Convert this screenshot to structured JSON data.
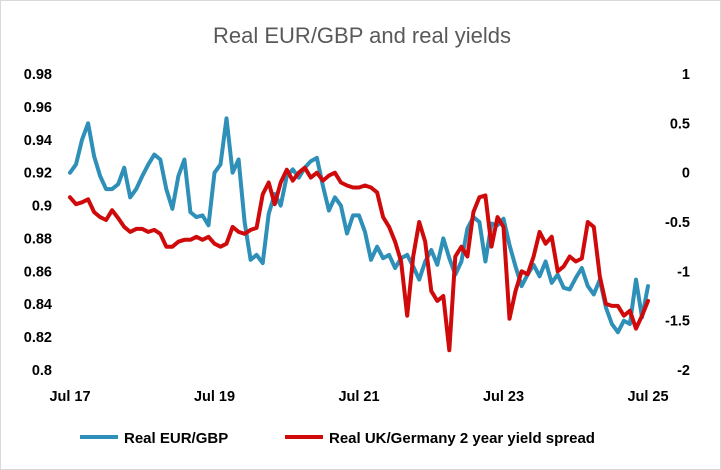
{
  "chart_data": {
    "type": "line",
    "title": "Real EUR/GBP and real yields",
    "xlabel": "",
    "ylabel": "",
    "x_ticks": [
      "Jul 17",
      "Jul 19",
      "Jul 21",
      "Jul 23",
      "Jul 25"
    ],
    "xlim": [
      "2017-07",
      "2025-07"
    ],
    "y_left": {
      "lim": [
        0.8,
        0.98
      ],
      "ticks": [
        "0.98",
        "0.96",
        "0.94",
        "0.92",
        "0.9",
        "0.88",
        "0.86",
        "0.84",
        "0.82",
        "0.8"
      ]
    },
    "y_right": {
      "lim": [
        -2,
        1
      ],
      "ticks": [
        "1",
        "0.5",
        "0",
        "-0.5",
        "-1",
        "-1.5",
        "-2"
      ]
    },
    "legend_position": "bottom",
    "series": [
      {
        "name": "Real EUR/GBP",
        "axis": "left",
        "color": "#2E8FB8",
        "points": [
          [
            "2017-07",
            0.92
          ],
          [
            "2017-08",
            0.925
          ],
          [
            "2017-09",
            0.94
          ],
          [
            "2017-10",
            0.95
          ],
          [
            "2017-11",
            0.93
          ],
          [
            "2017-12",
            0.918
          ],
          [
            "2018-01",
            0.91
          ],
          [
            "2018-02",
            0.91
          ],
          [
            "2018-03",
            0.913
          ],
          [
            "2018-04",
            0.923
          ],
          [
            "2018-05",
            0.905
          ],
          [
            "2018-06",
            0.91
          ],
          [
            "2018-07",
            0.918
          ],
          [
            "2018-08",
            0.925
          ],
          [
            "2018-09",
            0.931
          ],
          [
            "2018-10",
            0.928
          ],
          [
            "2018-11",
            0.91
          ],
          [
            "2018-12",
            0.898
          ],
          [
            "2019-01",
            0.918
          ],
          [
            "2019-02",
            0.928
          ],
          [
            "2019-03",
            0.896
          ],
          [
            "2019-04",
            0.893
          ],
          [
            "2019-05",
            0.894
          ],
          [
            "2019-06",
            0.888
          ],
          [
            "2019-07",
            0.92
          ],
          [
            "2019-08",
            0.925
          ],
          [
            "2019-09",
            0.953
          ],
          [
            "2019-10",
            0.92
          ],
          [
            "2019-11",
            0.928
          ],
          [
            "2019-12",
            0.89
          ],
          [
            "2020-01",
            0.867
          ],
          [
            "2020-02",
            0.87
          ],
          [
            "2020-03",
            0.865
          ],
          [
            "2020-04",
            0.895
          ],
          [
            "2020-05",
            0.907
          ],
          [
            "2020-06",
            0.9
          ],
          [
            "2020-07",
            0.918
          ],
          [
            "2020-08",
            0.922
          ],
          [
            "2020-09",
            0.917
          ],
          [
            "2020-10",
            0.923
          ],
          [
            "2020-11",
            0.927
          ],
          [
            "2020-12",
            0.929
          ],
          [
            "2021-01",
            0.912
          ],
          [
            "2021-02",
            0.897
          ],
          [
            "2021-03",
            0.905
          ],
          [
            "2021-04",
            0.9
          ],
          [
            "2021-05",
            0.883
          ],
          [
            "2021-06",
            0.894
          ],
          [
            "2021-07",
            0.894
          ],
          [
            "2021-08",
            0.884
          ],
          [
            "2021-09",
            0.867
          ],
          [
            "2021-10",
            0.875
          ],
          [
            "2021-11",
            0.868
          ],
          [
            "2021-12",
            0.87
          ],
          [
            "2022-01",
            0.862
          ],
          [
            "2022-02",
            0.868
          ],
          [
            "2022-03",
            0.87
          ],
          [
            "2022-04",
            0.863
          ],
          [
            "2022-05",
            0.855
          ],
          [
            "2022-06",
            0.866
          ],
          [
            "2022-07",
            0.873
          ],
          [
            "2022-08",
            0.864
          ],
          [
            "2022-09",
            0.88
          ],
          [
            "2022-10",
            0.868
          ],
          [
            "2022-11",
            0.858
          ],
          [
            "2022-12",
            0.866
          ],
          [
            "2023-01",
            0.886
          ],
          [
            "2023-02",
            0.893
          ],
          [
            "2023-03",
            0.89
          ],
          [
            "2023-04",
            0.866
          ],
          [
            "2023-05",
            0.889
          ],
          [
            "2023-06",
            0.888
          ],
          [
            "2023-07",
            0.892
          ],
          [
            "2023-08",
            0.876
          ],
          [
            "2023-09",
            0.863
          ],
          [
            "2023-10",
            0.851
          ],
          [
            "2023-11",
            0.858
          ],
          [
            "2023-12",
            0.864
          ],
          [
            "2024-01",
            0.857
          ],
          [
            "2024-02",
            0.866
          ],
          [
            "2024-03",
            0.853
          ],
          [
            "2024-04",
            0.858
          ],
          [
            "2024-05",
            0.85
          ],
          [
            "2024-06",
            0.849
          ],
          [
            "2024-07",
            0.856
          ],
          [
            "2024-08",
            0.862
          ],
          [
            "2024-09",
            0.851
          ],
          [
            "2024-10",
            0.846
          ],
          [
            "2024-11",
            0.855
          ],
          [
            "2024-12",
            0.838
          ],
          [
            "2025-01",
            0.828
          ],
          [
            "2025-02",
            0.823
          ],
          [
            "2025-03",
            0.83
          ],
          [
            "2025-04",
            0.828
          ],
          [
            "2025-05",
            0.855
          ],
          [
            "2025-06",
            0.832
          ],
          [
            "2025-07",
            0.851
          ]
        ]
      },
      {
        "name": "Real UK/Germany 2 year yield spread",
        "axis": "right",
        "color": "#D00A0A",
        "points": [
          [
            "2017-07",
            -0.25
          ],
          [
            "2017-08",
            -0.32
          ],
          [
            "2017-09",
            -0.3
          ],
          [
            "2017-10",
            -0.27
          ],
          [
            "2017-11",
            -0.4
          ],
          [
            "2017-12",
            -0.45
          ],
          [
            "2018-01",
            -0.48
          ],
          [
            "2018-02",
            -0.38
          ],
          [
            "2018-03",
            -0.46
          ],
          [
            "2018-04",
            -0.55
          ],
          [
            "2018-05",
            -0.6
          ],
          [
            "2018-06",
            -0.57
          ],
          [
            "2018-07",
            -0.57
          ],
          [
            "2018-08",
            -0.6
          ],
          [
            "2018-09",
            -0.58
          ],
          [
            "2018-10",
            -0.62
          ],
          [
            "2018-11",
            -0.75
          ],
          [
            "2018-12",
            -0.75
          ],
          [
            "2019-01",
            -0.7
          ],
          [
            "2019-02",
            -0.68
          ],
          [
            "2019-03",
            -0.68
          ],
          [
            "2019-04",
            -0.65
          ],
          [
            "2019-05",
            -0.68
          ],
          [
            "2019-06",
            -0.65
          ],
          [
            "2019-07",
            -0.72
          ],
          [
            "2019-08",
            -0.75
          ],
          [
            "2019-09",
            -0.72
          ],
          [
            "2019-10",
            -0.55
          ],
          [
            "2019-11",
            -0.6
          ],
          [
            "2019-12",
            -0.62
          ],
          [
            "2020-01",
            -0.58
          ],
          [
            "2020-02",
            -0.56
          ],
          [
            "2020-03",
            -0.22
          ],
          [
            "2020-04",
            -0.1
          ],
          [
            "2020-05",
            -0.32
          ],
          [
            "2020-06",
            -0.1
          ],
          [
            "2020-07",
            0.03
          ],
          [
            "2020-08",
            -0.08
          ],
          [
            "2020-09",
            0.0
          ],
          [
            "2020-10",
            0.05
          ],
          [
            "2020-11",
            -0.05
          ],
          [
            "2020-12",
            0.0
          ],
          [
            "2021-01",
            -0.08
          ],
          [
            "2021-02",
            -0.03
          ],
          [
            "2021-03",
            0.0
          ],
          [
            "2021-04",
            -0.1
          ],
          [
            "2021-05",
            -0.13
          ],
          [
            "2021-06",
            -0.15
          ],
          [
            "2021-07",
            -0.15
          ],
          [
            "2021-08",
            -0.13
          ],
          [
            "2021-09",
            -0.15
          ],
          [
            "2021-10",
            -0.2
          ],
          [
            "2021-11",
            -0.45
          ],
          [
            "2021-12",
            -0.55
          ],
          [
            "2022-01",
            -0.7
          ],
          [
            "2022-02",
            -0.9
          ],
          [
            "2022-03",
            -1.45
          ],
          [
            "2022-04",
            -0.85
          ],
          [
            "2022-05",
            -0.5
          ],
          [
            "2022-06",
            -0.7
          ],
          [
            "2022-07",
            -1.2
          ],
          [
            "2022-08",
            -1.3
          ],
          [
            "2022-09",
            -1.25
          ],
          [
            "2022-10",
            -1.8
          ],
          [
            "2022-11",
            -0.85
          ],
          [
            "2022-12",
            -0.75
          ],
          [
            "2023-01",
            -0.85
          ],
          [
            "2023-02",
            -0.4
          ],
          [
            "2023-03",
            -0.25
          ],
          [
            "2023-04",
            -0.23
          ],
          [
            "2023-05",
            -0.75
          ],
          [
            "2023-06",
            -0.45
          ],
          [
            "2023-07",
            -0.55
          ],
          [
            "2023-08",
            -1.48
          ],
          [
            "2023-09",
            -1.2
          ],
          [
            "2023-10",
            -1.0
          ],
          [
            "2023-11",
            -1.03
          ],
          [
            "2023-12",
            -0.85
          ],
          [
            "2024-01",
            -0.6
          ],
          [
            "2024-02",
            -0.72
          ],
          [
            "2024-03",
            -0.65
          ],
          [
            "2024-04",
            -1.0
          ],
          [
            "2024-05",
            -0.95
          ],
          [
            "2024-06",
            -0.85
          ],
          [
            "2024-07",
            -0.9
          ],
          [
            "2024-08",
            -0.87
          ],
          [
            "2024-09",
            -0.5
          ],
          [
            "2024-10",
            -0.55
          ],
          [
            "2024-11",
            -1.05
          ],
          [
            "2024-12",
            -1.33
          ],
          [
            "2025-01",
            -1.35
          ],
          [
            "2025-02",
            -1.35
          ],
          [
            "2025-03",
            -1.45
          ],
          [
            "2025-04",
            -1.4
          ],
          [
            "2025-05",
            -1.58
          ],
          [
            "2025-06",
            -1.45
          ],
          [
            "2025-07",
            -1.3
          ]
        ]
      }
    ]
  }
}
